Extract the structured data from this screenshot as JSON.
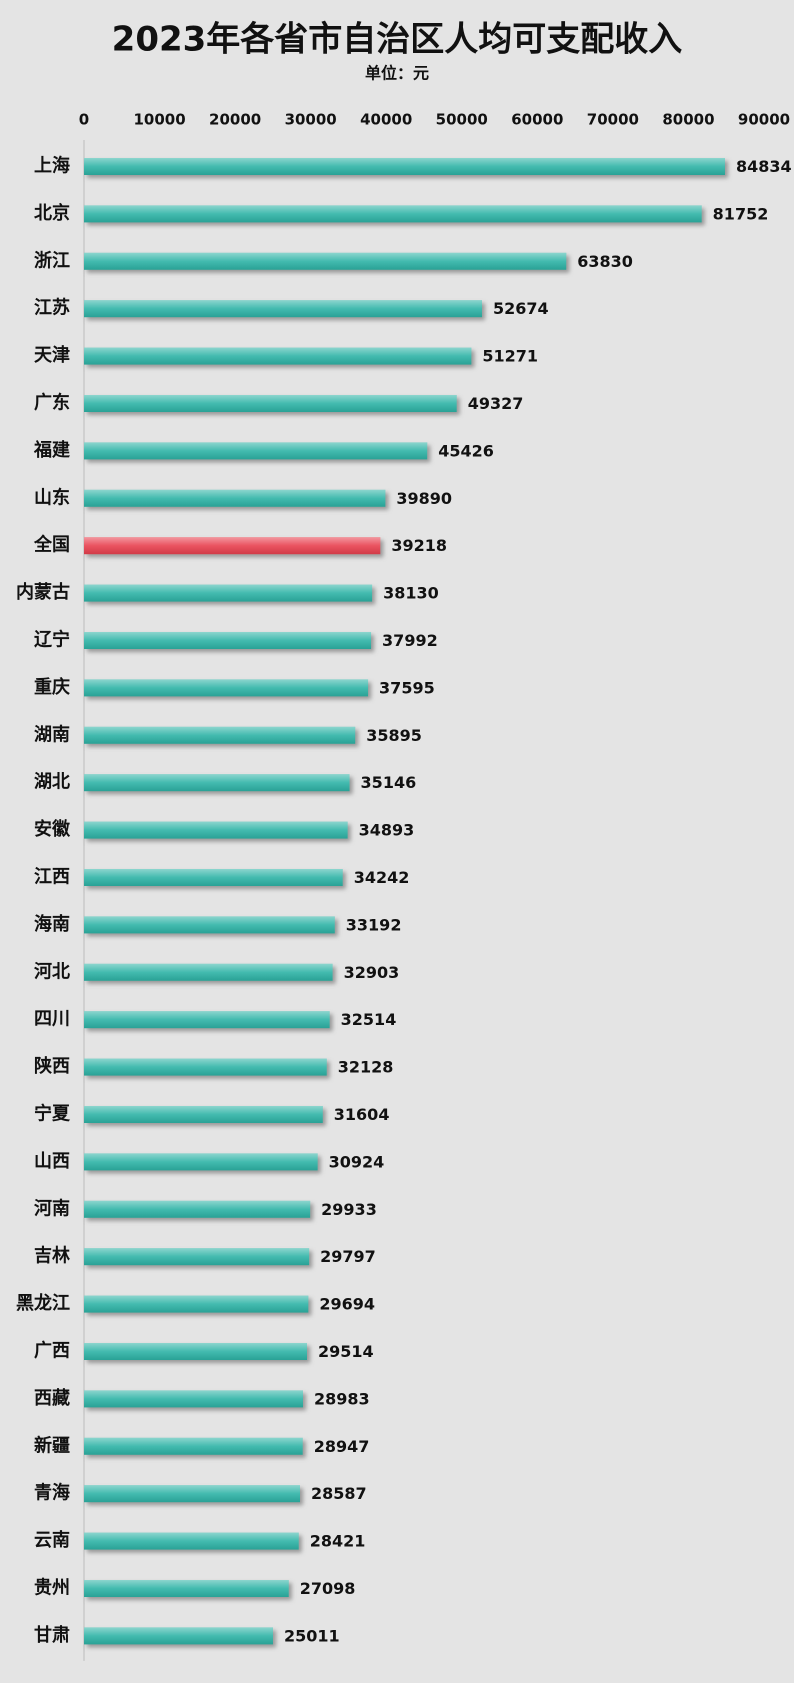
{
  "chart_data": {
    "type": "barh",
    "title": "2023年各省市自治区人均可支配收入",
    "subtitle": "单位：元",
    "categories": [
      "上海",
      "北京",
      "浙江",
      "江苏",
      "天津",
      "广东",
      "福建",
      "山东",
      "全国",
      "内蒙古",
      "辽宁",
      "重庆",
      "湖南",
      "湖北",
      "安徽",
      "江西",
      "海南",
      "河北",
      "四川",
      "陕西",
      "宁夏",
      "山西",
      "河南",
      "吉林",
      "黑龙江",
      "广西",
      "西藏",
      "新疆",
      "青海",
      "云南",
      "贵州",
      "甘肃"
    ],
    "values": [
      84834,
      81752,
      63830,
      52674,
      51271,
      49327,
      45426,
      39890,
      39218,
      38130,
      37992,
      37595,
      35895,
      35146,
      34893,
      34242,
      33192,
      32903,
      32514,
      32128,
      31604,
      30924,
      29933,
      29797,
      29694,
      29514,
      28983,
      28947,
      28587,
      28421,
      27098,
      25011
    ],
    "colors": [
      "#2db3a6",
      "#2db3a6",
      "#2db3a6",
      "#2db3a6",
      "#2db3a6",
      "#2db3a6",
      "#2db3a6",
      "#2db3a6",
      "#e8404f",
      "#2db3a6",
      "#2db3a6",
      "#2db3a6",
      "#2db3a6",
      "#2db3a6",
      "#2db3a6",
      "#2db3a6",
      "#2db3a6",
      "#2db3a6",
      "#2db3a6",
      "#2db3a6",
      "#2db3a6",
      "#2db3a6",
      "#2db3a6",
      "#2db3a6",
      "#2db3a6",
      "#2db3a6",
      "#2db3a6",
      "#2db3a6",
      "#2db3a6",
      "#2db3a6",
      "#2db3a6",
      "#2db3a6"
    ],
    "xlim": [
      0,
      90000
    ],
    "xticks": [
      0,
      10000,
      20000,
      30000,
      40000,
      50000,
      60000,
      70000,
      80000,
      90000
    ],
    "grid": false
  }
}
